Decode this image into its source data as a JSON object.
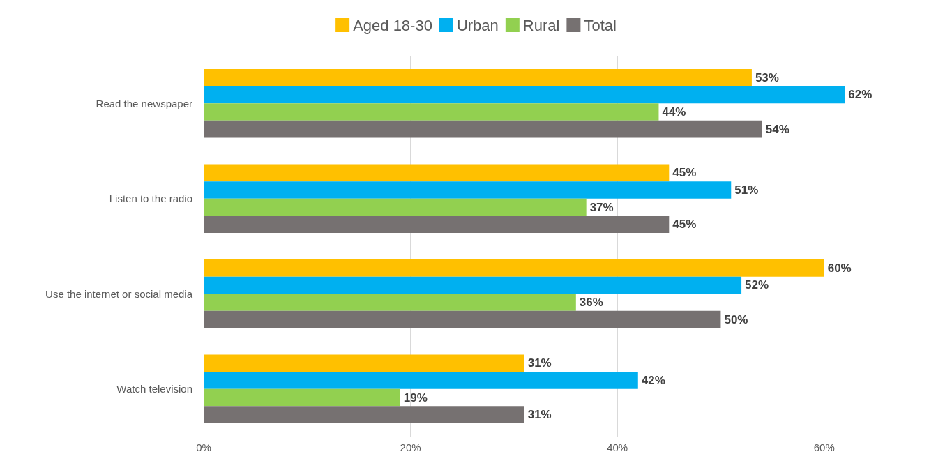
{
  "chart_data": {
    "type": "bar",
    "orientation": "horizontal",
    "categories": [
      "Read the newspaper",
      "Listen to the radio",
      "Use the internet or social media",
      "Watch television"
    ],
    "series": [
      {
        "name": "Aged 18-30",
        "color": "#ffc000",
        "values": [
          53,
          45,
          60,
          31
        ],
        "value_labels": [
          "53%",
          "45%",
          "60%",
          "31%"
        ]
      },
      {
        "name": "Urban",
        "color": "#00b0f0",
        "values": [
          62,
          51,
          52,
          42
        ],
        "value_labels": [
          "62%",
          "51%",
          "52%",
          "42%"
        ]
      },
      {
        "name": "Rural",
        "color": "#92d050",
        "values": [
          44,
          37,
          36,
          19
        ],
        "value_labels": [
          "44%",
          "37%",
          "36%",
          "19%"
        ]
      },
      {
        "name": "Total",
        "color": "#767171",
        "values": [
          54,
          45,
          50,
          31
        ],
        "value_labels": [
          "54%",
          "45%",
          "50%",
          "31%"
        ]
      }
    ],
    "xlim": [
      0,
      70
    ],
    "xticks": [
      {
        "value": 0,
        "label": "0%"
      },
      {
        "value": 20,
        "label": "20%"
      },
      {
        "value": 40,
        "label": "40%"
      },
      {
        "value": 60,
        "label": "60%"
      }
    ],
    "grid": "x",
    "legend": "top"
  }
}
